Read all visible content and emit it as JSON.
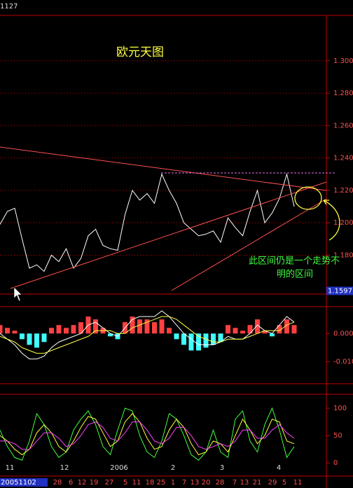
{
  "header_text": "1127",
  "chart_data": [
    {
      "type": "line",
      "title": "欧元天图",
      "color": "#ffffff",
      "values": [
        1.199,
        1.207,
        1.209,
        1.19,
        1.172,
        1.174,
        1.17,
        1.18,
        1.176,
        1.184,
        1.172,
        1.178,
        1.192,
        1.196,
        1.186,
        1.184,
        1.183,
        1.205,
        1.22,
        1.214,
        1.218,
        1.212,
        1.23,
        1.22,
        1.212,
        1.2,
        1.196,
        1.192,
        1.193,
        1.195,
        1.188,
        1.203,
        1.197,
        1.192,
        1.207,
        1.22,
        1.2,
        1.206,
        1.215,
        1.23,
        1.21
      ],
      "ylim": [
        1.156,
        1.328
      ],
      "yticks": [
        {
          "value": 1.3,
          "label": "1.300"
        },
        {
          "value": 1.28,
          "label": "1.280"
        },
        {
          "value": 1.26,
          "label": "1.260"
        },
        {
          "value": 1.24,
          "label": "1.240"
        },
        {
          "value": 1.22,
          "label": "1.220"
        },
        {
          "value": 1.2,
          "label": "1.200"
        },
        {
          "value": 1.18,
          "label": "1.180"
        }
      ],
      "grid": true,
      "last_price": {
        "value": 1.1597,
        "label": "1.1597"
      },
      "annotations": [
        "此区间仍是一个走势不",
        "明的区间"
      ]
    },
    {
      "type": "macd",
      "up_color": "#ff4040",
      "down_color": "#40ffff",
      "histogram": [
        0.003,
        0.002,
        0.001,
        -0.002,
        -0.004,
        -0.005,
        -0.003,
        0.002,
        0.003,
        0.002,
        0.003,
        0.004,
        0.006,
        0.005,
        0.002,
        -0.001,
        -0.002,
        0.004,
        0.006,
        0.005,
        0.005,
        0.004,
        0.005,
        0.002,
        -0.002,
        -0.004,
        -0.006,
        -0.006,
        -0.005,
        -0.004,
        -0.003,
        0.003,
        0.002,
        0.001,
        0.003,
        0.005,
        0.001,
        -0.001,
        0.003,
        0.005,
        0.003
      ],
      "series": [
        {
          "color": "#ffffff",
          "values": [
            0.0,
            -0.002,
            -0.004,
            -0.007,
            -0.009,
            -0.009,
            -0.008,
            -0.005,
            -0.003,
            -0.002,
            -0.001,
            0.0,
            0.003,
            0.004,
            0.002,
            0.0,
            -0.001,
            0.002,
            0.005,
            0.006,
            0.006,
            0.006,
            0.008,
            0.006,
            0.003,
            0.0,
            -0.002,
            -0.004,
            -0.004,
            -0.004,
            -0.003,
            -0.001,
            -0.002,
            -0.002,
            0.0,
            0.003,
            0.001,
            0.0,
            0.003,
            0.006,
            0.004
          ]
        },
        {
          "color": "#ffff40",
          "values": [
            -0.001,
            -0.002,
            -0.003,
            -0.005,
            -0.006,
            -0.007,
            -0.007,
            -0.006,
            -0.005,
            -0.004,
            -0.003,
            -0.002,
            -0.001,
            0.001,
            0.001,
            0.001,
            0.0,
            0.0,
            0.002,
            0.003,
            0.004,
            0.005,
            0.006,
            0.006,
            0.005,
            0.003,
            0.001,
            -0.001,
            -0.002,
            -0.003,
            -0.003,
            -0.002,
            -0.002,
            -0.002,
            -0.001,
            0.0,
            0.001,
            0.001,
            0.001,
            0.003,
            0.004
          ]
        }
      ],
      "ylim": [
        -0.017,
        0.009
      ],
      "yticks": [
        {
          "value": 0,
          "label": "0.000"
        },
        {
          "value": -0.01,
          "label": "-0.010"
        }
      ]
    },
    {
      "type": "line",
      "series": [
        {
          "color": "#40ff40",
          "values": [
            60,
            30,
            10,
            5,
            40,
            90,
            70,
            30,
            10,
            20,
            60,
            80,
            95,
            70,
            30,
            15,
            60,
            100,
            95,
            50,
            20,
            10,
            40,
            90,
            80,
            50,
            15,
            5,
            20,
            60,
            20,
            10,
            80,
            95,
            40,
            20,
            70,
            100,
            60,
            10,
            30
          ]
        },
        {
          "color": "#ffff40",
          "values": [
            50,
            40,
            25,
            15,
            25,
            55,
            70,
            55,
            30,
            20,
            40,
            65,
            85,
            80,
            55,
            30,
            40,
            75,
            90,
            75,
            45,
            25,
            30,
            60,
            80,
            65,
            35,
            15,
            20,
            40,
            35,
            20,
            50,
            80,
            60,
            35,
            50,
            80,
            75,
            40,
            35
          ]
        },
        {
          "color": "#ff40ff",
          "values": [
            40,
            40,
            35,
            25,
            25,
            40,
            55,
            55,
            45,
            30,
            35,
            50,
            70,
            75,
            65,
            45,
            40,
            55,
            75,
            75,
            60,
            40,
            35,
            45,
            65,
            65,
            50,
            30,
            25,
            30,
            35,
            30,
            40,
            60,
            60,
            45,
            45,
            60,
            70,
            55,
            45
          ]
        }
      ],
      "ylim": [
        -24,
        123
      ],
      "yticks": [
        100,
        50,
        0
      ]
    }
  ],
  "x_axis": {
    "months": [
      "11",
      "12",
      "2006",
      "2",
      "3",
      "4"
    ],
    "days": [
      "20051102",
      "28",
      "6",
      "12",
      "19",
      "27",
      "5",
      "11",
      "18",
      "25",
      "1",
      "7",
      "13",
      "20",
      "28",
      "7",
      "13",
      "21",
      "29",
      "5",
      "11"
    ]
  }
}
